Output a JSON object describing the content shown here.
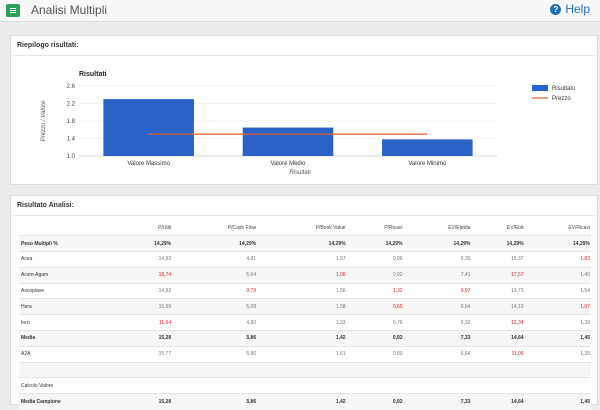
{
  "header": {
    "title": "Analisi Multipli",
    "help_label": "Help"
  },
  "summary": {
    "title": "Riepilogo risultati:"
  },
  "chart_data": {
    "type": "bar",
    "title": "Risultati",
    "xlabel": "Risultati",
    "ylabel": "Prezzo / Valore",
    "categories": [
      "Valore Massimo",
      "Valore Medio",
      "Valore Minimo"
    ],
    "series": [
      {
        "name": "Risultato",
        "type": "bar",
        "color": "#2b62c8",
        "values": [
          2.3,
          1.65,
          1.38
        ]
      },
      {
        "name": "Prezzo",
        "type": "line",
        "color": "#e05e2e",
        "values": [
          1.5,
          1.5,
          1.5
        ]
      }
    ],
    "yticks": [
      "2.6",
      "2.2",
      "1.8",
      "1.4",
      "1.0"
    ],
    "ylim": [
      1.0,
      2.6
    ],
    "legend_position": "top-right"
  },
  "analysis": {
    "title": "Risultato Analisi:",
    "columns": [
      "P/Utili",
      "P/Cash Flow",
      "P/Book Value",
      "P/Ricavi",
      "EV/Ebitda",
      "EV/Ebit",
      "EV/Ricavi"
    ],
    "rows": [
      {
        "label": "Peso Multipli %",
        "style": "bold shade",
        "values": [
          "14,29%",
          "14,29%",
          "14,29%",
          "14,29%",
          "14,29%",
          "14,29%",
          "14,29%"
        ],
        "red": []
      },
      {
        "label": "Acea",
        "style": "",
        "values": [
          "14,93",
          "4,81",
          "1,57",
          "0,96",
          "6,30",
          "15,37",
          "1,83"
        ],
        "red": [
          6
        ]
      },
      {
        "label": "Acsm-Agam",
        "style": "shade",
        "values": [
          "18,74",
          "5,64",
          "1,06",
          "0,92",
          "7,41",
          "17,57",
          "1,40"
        ],
        "red": [
          0,
          2,
          5
        ]
      },
      {
        "label": "Ascopiave",
        "style": "",
        "values": [
          "14,92",
          "9,79",
          "1,56",
          "1,32",
          "9,97",
          "13,73",
          "1,54"
        ],
        "red": [
          1,
          3,
          4
        ]
      },
      {
        "label": "Hera",
        "style": "shade",
        "values": [
          "15,99",
          "5,08",
          "1,58",
          "0,65",
          "6,64",
          "14,19",
          "1,07"
        ],
        "red": [
          3,
          6
        ]
      },
      {
        "label": "Iren",
        "style": "",
        "values": [
          "11,64",
          "4,80",
          "1,33",
          "0,76",
          "6,32",
          "12,34",
          "1,39"
        ],
        "red": [
          0,
          5
        ]
      },
      {
        "label": "Media",
        "style": "bold shade",
        "values": [
          "15,28",
          "5,86",
          "1,42",
          "0,92",
          "7,33",
          "14,64",
          "1,45"
        ],
        "red": []
      },
      {
        "label": "A2A",
        "style": "",
        "values": [
          "15,77",
          "5,86",
          "1,61",
          "0,80",
          "6,64",
          "11,06",
          "1,35"
        ],
        "red": [
          5
        ]
      },
      {
        "label": "",
        "style": "shade",
        "values": [
          "",
          "",
          "",
          "",
          "",
          "",
          ""
        ],
        "red": []
      },
      {
        "label": "Calcolo Valore",
        "style": "",
        "values": [
          "",
          "",
          "",
          "",
          "",
          "",
          ""
        ],
        "red": []
      },
      {
        "label": "Media Campione",
        "style": "bold shade",
        "values": [
          "15,28",
          "5,86",
          "1,42",
          "0,92",
          "7,33",
          "14,64",
          "1,45"
        ],
        "red": []
      }
    ]
  }
}
